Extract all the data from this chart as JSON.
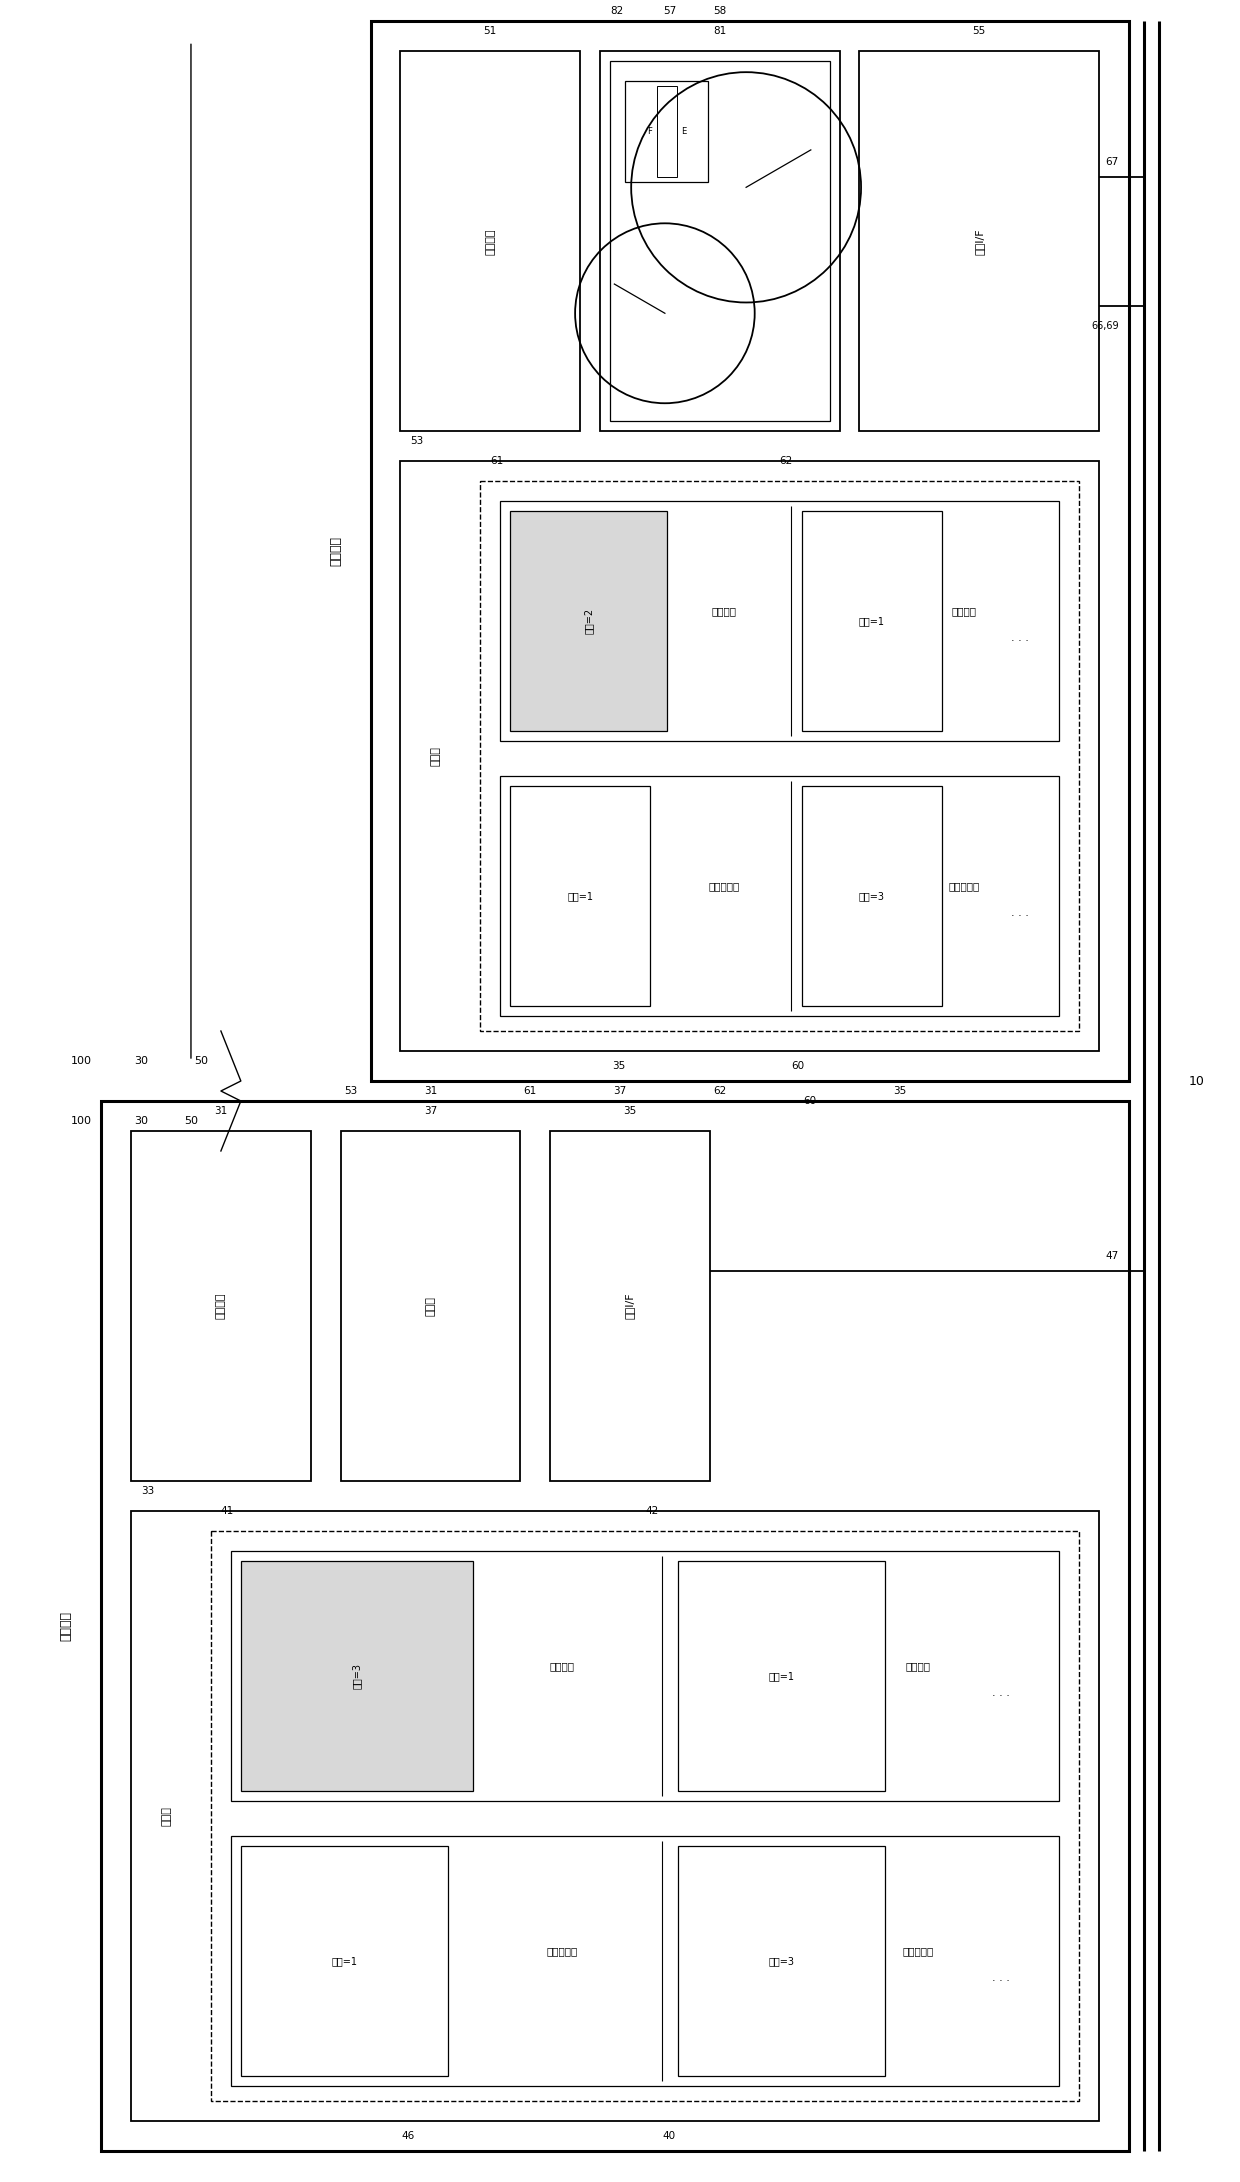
{
  "bg_color": "#ffffff",
  "line_color": "#000000",
  "fig_width": 12.4,
  "fig_height": 21.82,
  "labels": {
    "combined_meter": "组合付表",
    "rewrite_device": "重写设备",
    "ctrl_circuit": "控制电路",
    "display": "显示器",
    "comm_if": "通信I/F",
    "storage": "存储器",
    "font_area": "字体区域",
    "bg_area": "背景区域",
    "speed_area": "速度计区域",
    "oil_area": "油量计区域",
    "v2": "版本=2",
    "v1": "版本=1",
    "v3": "版本=3",
    "dots": "· · ·"
  },
  "nums": {
    "n10": "10",
    "n30": "30",
    "n50": "50",
    "n100": "100",
    "n31": "31",
    "n33": "33",
    "n35": "35",
    "n37": "37",
    "n40": "40",
    "n41": "41",
    "n42": "42",
    "n46": "46",
    "n47": "47",
    "n51": "51",
    "n53": "53",
    "n55": "55",
    "n57": "57",
    "n58": "58",
    "n60": "60",
    "n61": "61",
    "n62": "62",
    "n66_69": "66,69",
    "n67": "67",
    "n81": "81",
    "n82": "82"
  }
}
